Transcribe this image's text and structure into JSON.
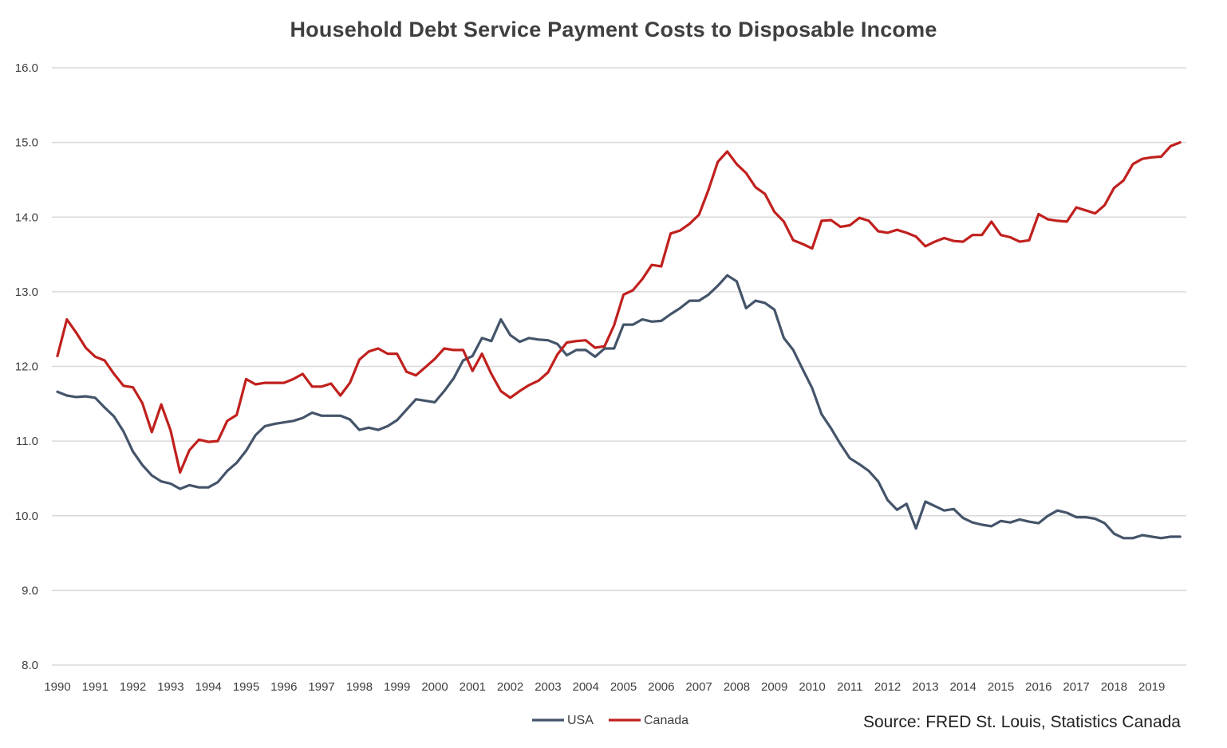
{
  "chart_data": {
    "type": "line",
    "title": "Household Debt Service Payment Costs to Disposable Income",
    "xlabel": "",
    "ylabel": "",
    "ylim": [
      8.0,
      16.0
    ],
    "yticks": [
      "8.0",
      "9.0",
      "10.0",
      "11.0",
      "12.0",
      "13.0",
      "14.0",
      "15.0",
      "16.0"
    ],
    "xticks": [
      "1990",
      "1991",
      "1992",
      "1993",
      "1994",
      "1995",
      "1996",
      "1997",
      "1998",
      "1999",
      "2000",
      "2001",
      "2002",
      "2003",
      "2004",
      "2005",
      "2006",
      "2007",
      "2008",
      "2009",
      "2010",
      "2011",
      "2012",
      "2013",
      "2014",
      "2015",
      "2016",
      "2017",
      "2018",
      "2019"
    ],
    "grid": true,
    "legend_position": "bottom",
    "x": [
      "1990Q1",
      "1990Q2",
      "1990Q3",
      "1990Q4",
      "1991Q1",
      "1991Q2",
      "1991Q3",
      "1991Q4",
      "1992Q1",
      "1992Q2",
      "1992Q3",
      "1992Q4",
      "1993Q1",
      "1993Q2",
      "1993Q3",
      "1993Q4",
      "1994Q1",
      "1994Q2",
      "1994Q3",
      "1994Q4",
      "1995Q1",
      "1995Q2",
      "1995Q3",
      "1995Q4",
      "1996Q1",
      "1996Q2",
      "1996Q3",
      "1996Q4",
      "1997Q1",
      "1997Q2",
      "1997Q3",
      "1997Q4",
      "1998Q1",
      "1998Q2",
      "1998Q3",
      "1998Q4",
      "1999Q1",
      "1999Q2",
      "1999Q3",
      "1999Q4",
      "2000Q1",
      "2000Q2",
      "2000Q3",
      "2000Q4",
      "2001Q1",
      "2001Q2",
      "2001Q3",
      "2001Q4",
      "2002Q1",
      "2002Q2",
      "2002Q3",
      "2002Q4",
      "2003Q1",
      "2003Q2",
      "2003Q3",
      "2003Q4",
      "2004Q1",
      "2004Q2",
      "2004Q3",
      "2004Q4",
      "2005Q1",
      "2005Q2",
      "2005Q3",
      "2005Q4",
      "2006Q1",
      "2006Q2",
      "2006Q3",
      "2006Q4",
      "2007Q1",
      "2007Q2",
      "2007Q3",
      "2007Q4",
      "2008Q1",
      "2008Q2",
      "2008Q3",
      "2008Q4",
      "2009Q1",
      "2009Q2",
      "2009Q3",
      "2009Q4",
      "2010Q1",
      "2010Q2",
      "2010Q3",
      "2010Q4",
      "2011Q1",
      "2011Q2",
      "2011Q3",
      "2011Q4",
      "2012Q1",
      "2012Q2",
      "2012Q3",
      "2012Q4",
      "2013Q1",
      "2013Q2",
      "2013Q3",
      "2013Q4",
      "2014Q1",
      "2014Q2",
      "2014Q3",
      "2014Q4",
      "2015Q1",
      "2015Q2",
      "2015Q3",
      "2015Q4",
      "2016Q1",
      "2016Q2",
      "2016Q3",
      "2016Q4",
      "2017Q1",
      "2017Q2",
      "2017Q3",
      "2017Q4",
      "2018Q1",
      "2018Q2",
      "2018Q3",
      "2018Q4",
      "2019Q1",
      "2019Q2",
      "2019Q3",
      "2019Q4"
    ],
    "series": [
      {
        "name": "USA",
        "color": "#44546a",
        "values": [
          11.66,
          11.61,
          11.59,
          11.6,
          11.58,
          11.45,
          11.33,
          11.13,
          10.86,
          10.68,
          10.54,
          10.46,
          10.43,
          10.36,
          10.41,
          10.38,
          10.38,
          10.45,
          10.6,
          10.71,
          10.87,
          11.08,
          11.2,
          11.23,
          11.25,
          11.27,
          11.31,
          11.38,
          11.34,
          11.34,
          11.34,
          11.29,
          11.15,
          11.18,
          11.15,
          11.2,
          11.28,
          11.42,
          11.56,
          11.54,
          11.52,
          11.67,
          11.84,
          12.08,
          12.14,
          12.38,
          12.34,
          12.63,
          12.42,
          12.33,
          12.38,
          12.36,
          12.35,
          12.3,
          12.15,
          12.22,
          12.22,
          12.13,
          12.24,
          12.24,
          12.56,
          12.56,
          12.63,
          12.6,
          12.61,
          12.7,
          12.78,
          12.88,
          12.88,
          12.96,
          13.08,
          13.22,
          13.14,
          12.78,
          12.88,
          12.85,
          12.76,
          12.38,
          12.22,
          11.96,
          11.71,
          11.36,
          11.17,
          10.96,
          10.77,
          10.69,
          10.6,
          10.46,
          10.21,
          10.08,
          10.16,
          9.83,
          10.19,
          10.13,
          10.07,
          10.09,
          9.97,
          9.91,
          9.88,
          9.86,
          9.93,
          9.91,
          9.95,
          9.92,
          9.9,
          10.0,
          10.07,
          10.04,
          9.98,
          9.98,
          9.96,
          9.9,
          9.76,
          9.7,
          9.7,
          9.74,
          9.72,
          9.7,
          9.72,
          9.72
        ]
      },
      {
        "name": "Canada",
        "color": "#c0201d",
        "values": [
          12.14,
          12.63,
          12.45,
          12.25,
          12.13,
          12.08,
          11.9,
          11.74,
          11.72,
          11.51,
          11.12,
          11.49,
          11.14,
          10.58,
          10.88,
          11.02,
          10.99,
          11.0,
          11.27,
          11.35,
          11.83,
          11.76,
          11.78,
          11.78,
          11.78,
          11.83,
          11.9,
          11.73,
          11.73,
          11.77,
          11.61,
          11.78,
          12.09,
          12.2,
          12.24,
          12.17,
          12.17,
          11.93,
          11.88,
          11.99,
          12.1,
          12.24,
          12.22,
          12.22,
          11.94,
          12.17,
          11.9,
          11.67,
          11.58,
          11.67,
          11.75,
          11.81,
          11.92,
          12.16,
          12.32,
          12.34,
          12.35,
          12.25,
          12.27,
          12.55,
          12.96,
          13.02,
          13.17,
          13.36,
          13.34,
          13.78,
          13.82,
          13.91,
          14.03,
          14.36,
          14.74,
          14.88,
          14.71,
          14.59,
          14.4,
          14.31,
          14.07,
          13.94,
          13.69,
          13.64,
          13.58,
          13.95,
          13.96,
          13.87,
          13.89,
          13.99,
          13.95,
          13.81,
          13.79,
          13.83,
          13.79,
          13.74,
          13.61,
          13.67,
          13.72,
          13.68,
          13.67,
          13.76,
          13.76,
          13.94,
          13.76,
          13.73,
          13.67,
          13.69,
          14.04,
          13.97,
          13.95,
          13.94,
          14.13,
          14.09,
          14.05,
          14.16,
          14.39,
          14.49,
          14.71,
          14.78,
          14.8,
          14.81,
          14.95,
          15.0
        ]
      }
    ]
  },
  "source_note": "Source: FRED St. Louis, Statistics Canada"
}
